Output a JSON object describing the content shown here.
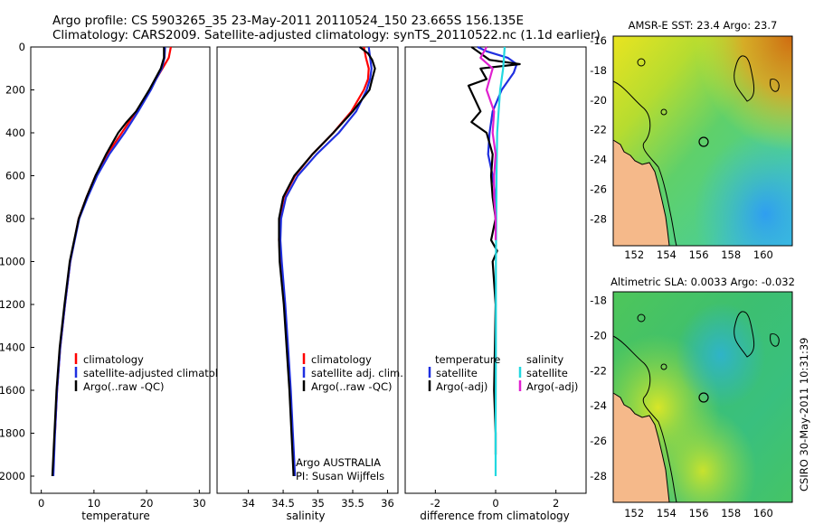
{
  "header": {
    "line1": "Argo profile: CS 5903265_35 23-May-2011 20110524_150 23.665S 156.135E",
    "line2": "Climatology: CARS2009. Satellite-adjusted climatology: synTS_20110522.nc (1.1d earlier)"
  },
  "footer": {
    "credit": "CSIRO 30-May-2011 10:31:39"
  },
  "colors": {
    "climatology": "#ff0000",
    "satellite": "#1f2fe0",
    "argo": "#000000",
    "satellite_sal": "#22d8e0",
    "argo_sal": "#e020d0",
    "land": "#f5b98a"
  },
  "chart_data": [
    {
      "id": "temperature",
      "type": "line",
      "xlabel": "temperature",
      "xlim": [
        -2,
        32
      ],
      "xticks": [
        "0",
        "10",
        "20",
        "30"
      ],
      "xtick_values": [
        0,
        10,
        20,
        30
      ],
      "ylim": [
        2080,
        0
      ],
      "yticks": [
        "0",
        "200",
        "400",
        "600",
        "800",
        "1000",
        "1200",
        "1400",
        "1600",
        "1800",
        "2000"
      ],
      "ytick_values": [
        0,
        200,
        400,
        600,
        800,
        1000,
        1200,
        1400,
        1600,
        1800,
        2000
      ],
      "legend": [
        "climatology",
        "satellite-adjusted climatology",
        "Argo(..raw -QC)"
      ],
      "series": [
        {
          "name": "climatology",
          "color": "#ff0000",
          "depth": [
            0,
            50,
            100,
            150,
            200,
            300,
            400,
            500,
            600,
            700,
            800,
            1000,
            1200,
            1400,
            1600,
            1800
          ],
          "values": [
            24.6,
            24.2,
            23.0,
            21.8,
            20.7,
            18.0,
            15.3,
            12.5,
            10.3,
            8.6,
            7.1,
            5.5,
            4.5,
            3.6,
            3.0,
            2.6
          ]
        },
        {
          "name": "satellite",
          "color": "#1f2fe0",
          "depth": [
            0,
            50,
            100,
            150,
            200,
            300,
            400,
            500,
            600,
            700,
            800,
            1000,
            1200,
            1400,
            1600,
            1800,
            2000
          ],
          "values": [
            23.5,
            23.4,
            22.9,
            21.8,
            20.8,
            18.4,
            15.8,
            12.9,
            10.6,
            8.8,
            7.2,
            5.5,
            4.5,
            3.6,
            3.0,
            2.6,
            2.3
          ]
        },
        {
          "name": "argo",
          "color": "#000000",
          "depth": [
            0,
            50,
            100,
            150,
            200,
            300,
            350,
            400,
            500,
            600,
            700,
            800,
            1000,
            1200,
            1400,
            1600,
            1800,
            2000
          ],
          "values": [
            23.3,
            23.3,
            22.7,
            21.6,
            20.5,
            18.0,
            16.2,
            14.6,
            12.3,
            10.3,
            8.6,
            7.1,
            5.4,
            4.4,
            3.5,
            2.9,
            2.5,
            2.1
          ]
        }
      ]
    },
    {
      "id": "salinity",
      "type": "line",
      "xlabel": "salinity",
      "xlim": [
        33.55,
        36.15
      ],
      "xticks": [
        "34",
        "34.5",
        "35",
        "35.5",
        "36"
      ],
      "xtick_values": [
        34,
        34.5,
        35,
        35.5,
        36
      ],
      "ylim": [
        2080,
        0
      ],
      "legend": [
        "climatology",
        "satellite adj. clim.",
        "Argo(..raw -QC)"
      ],
      "annotation": [
        "Argo AUSTRALIA",
        "PI: Susan Wijffels"
      ],
      "series": [
        {
          "name": "climatology",
          "color": "#ff0000",
          "depth": [
            0,
            50,
            100,
            150,
            200,
            300,
            400,
            500,
            600,
            700,
            800,
            900,
            1000,
            1200,
            1400,
            1600,
            1800
          ],
          "values": [
            35.66,
            35.69,
            35.73,
            35.72,
            35.66,
            35.48,
            35.22,
            34.92,
            34.67,
            34.51,
            34.45,
            34.44,
            34.46,
            34.52,
            34.56,
            34.6,
            34.63
          ]
        },
        {
          "name": "satellite",
          "color": "#1f2fe0",
          "depth": [
            0,
            50,
            100,
            150,
            200,
            300,
            400,
            500,
            600,
            700,
            800,
            900,
            1000,
            1200,
            1400,
            1600,
            1800,
            2000
          ],
          "values": [
            35.73,
            35.75,
            35.77,
            35.75,
            35.7,
            35.55,
            35.3,
            34.98,
            34.71,
            34.54,
            34.47,
            34.46,
            34.48,
            34.53,
            34.57,
            34.61,
            34.64,
            34.67
          ]
        },
        {
          "name": "argo",
          "color": "#000000",
          "depth": [
            0,
            30,
            60,
            100,
            150,
            200,
            300,
            400,
            500,
            600,
            700,
            800,
            900,
            1000,
            1200,
            1400,
            1600,
            1800,
            2000
          ],
          "values": [
            35.6,
            35.72,
            35.78,
            35.82,
            35.78,
            35.74,
            35.5,
            35.22,
            34.92,
            34.66,
            34.5,
            34.44,
            34.44,
            34.45,
            34.51,
            34.55,
            34.59,
            34.62,
            34.65
          ]
        }
      ]
    },
    {
      "id": "difference",
      "type": "line",
      "xlabel": "difference from climatology",
      "xlim": [
        -3,
        3
      ],
      "xticks": [
        "-2",
        "0",
        "2"
      ],
      "xtick_values": [
        -2,
        0,
        2
      ],
      "ylim": [
        2080,
        0
      ],
      "legend_left_title": "temperature",
      "legend_right_title": "salinity",
      "legend": [
        "satellite",
        "Argo(-adj)",
        "satellite",
        "Argo(-adj)"
      ],
      "series": [
        {
          "name": "temperature satellite",
          "color": "#1f2fe0",
          "depth": [
            0,
            20,
            50,
            80,
            120,
            200,
            300,
            400,
            500,
            600,
            700,
            800
          ],
          "values": [
            -0.6,
            -0.3,
            0.4,
            0.7,
            0.6,
            0.2,
            -0.1,
            -0.2,
            -0.25,
            -0.1,
            0.0,
            0.0
          ]
        },
        {
          "name": "temperature argo",
          "color": "#000000",
          "depth": [
            0,
            30,
            60,
            80,
            100,
            150,
            180,
            300,
            350,
            400,
            500,
            600,
            700,
            800,
            900,
            950,
            1000,
            1200,
            1600,
            1800,
            1900
          ],
          "values": [
            -0.8,
            -0.5,
            -0.2,
            0.8,
            -0.5,
            -0.3,
            -0.9,
            -0.5,
            -0.8,
            -0.3,
            -0.1,
            -0.15,
            -0.1,
            0.0,
            -0.15,
            0.05,
            -0.1,
            0.0,
            -0.05,
            0.0,
            0.0
          ]
        },
        {
          "name": "salinity satellite",
          "color": "#22d8e0",
          "depth": [
            0,
            100,
            200,
            300,
            400,
            600,
            800,
            1000,
            1400,
            1800,
            2000
          ],
          "values": [
            0.3,
            0.25,
            0.15,
            0.1,
            0.05,
            0.03,
            0.02,
            0.01,
            0.01,
            0.0,
            0.0
          ]
        },
        {
          "name": "salinity argo",
          "color": "#e020d0",
          "depth": [
            0,
            50,
            100,
            200,
            300,
            400,
            500,
            600,
            700,
            800,
            900
          ],
          "values": [
            -0.3,
            -0.5,
            -0.1,
            -0.3,
            -0.05,
            -0.1,
            0.0,
            -0.05,
            -0.05,
            0.0,
            0.0
          ]
        }
      ]
    },
    {
      "id": "sst_map",
      "type": "heatmap",
      "title": "AMSR-E SST: 23.4 Argo: 23.7",
      "xticks": [
        "152",
        "154",
        "156",
        "158",
        "160"
      ],
      "xtick_values": [
        152,
        154,
        156,
        158,
        160
      ],
      "xlim": [
        150.7,
        161.8
      ],
      "yticks": [
        "-16",
        "-18",
        "-20",
        "-22",
        "-24",
        "-26",
        "-28"
      ],
      "ytick_values": [
        -16,
        -18,
        -20,
        -22,
        -24,
        -26,
        -28
      ],
      "ylim": [
        -29.8,
        -15.7
      ],
      "argo_position": [
        156.135,
        -23.665
      ]
    },
    {
      "id": "sla_map",
      "type": "heatmap",
      "title": "Altimetric SLA: 0.0033 Argo: -0.032",
      "xticks": [
        "152",
        "154",
        "156",
        "158",
        "160"
      ],
      "xtick_values": [
        152,
        154,
        156,
        158,
        160
      ],
      "xlim": [
        150.7,
        161.8
      ],
      "yticks": [
        "-18",
        "-20",
        "-22",
        "-24",
        "-26",
        "-28"
      ],
      "ytick_values": [
        -18,
        -20,
        -22,
        -24,
        -26,
        -28
      ],
      "ylim": [
        -29.5,
        -17.5
      ],
      "argo_position": [
        156.135,
        -23.665
      ]
    }
  ]
}
